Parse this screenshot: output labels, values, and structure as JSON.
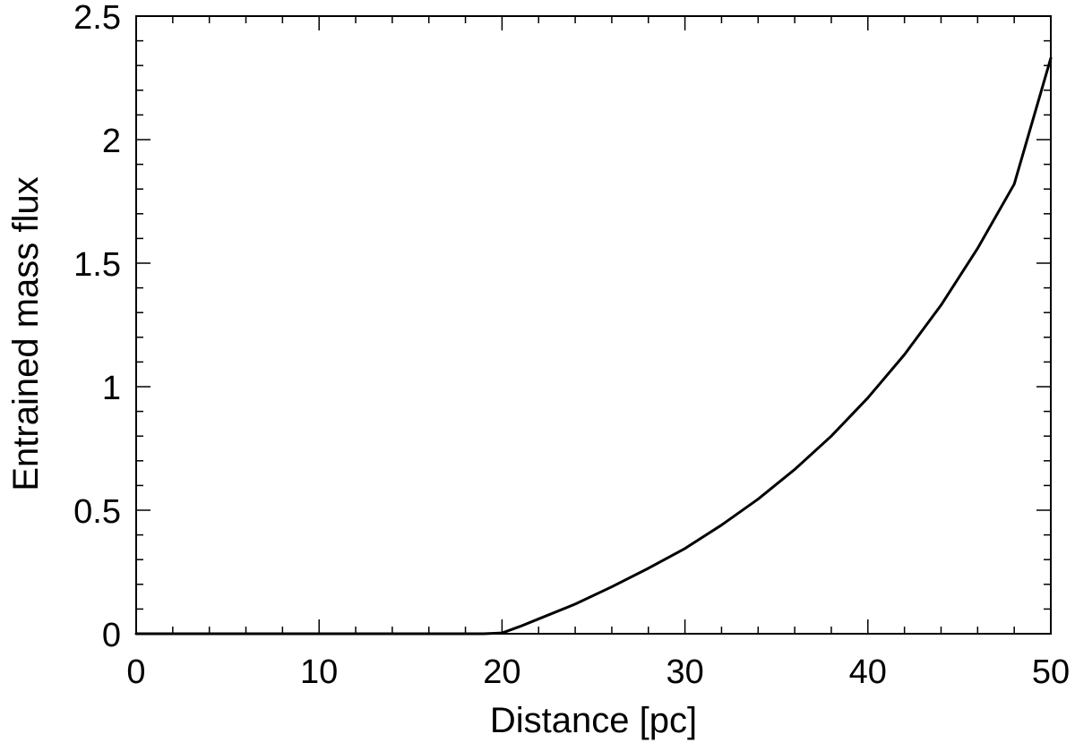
{
  "chart_data": {
    "type": "line",
    "title": "",
    "xlabel": "Distance [pc]",
    "ylabel": "Entrained mass flux",
    "xlim": [
      0,
      50
    ],
    "ylim": [
      0,
      2.5
    ],
    "x_ticks": [
      0,
      10,
      20,
      30,
      40,
      50
    ],
    "x_tick_labels": [
      "0",
      "10",
      "20",
      "30",
      "40",
      "50"
    ],
    "y_ticks": [
      0,
      0.5,
      1,
      1.5,
      2,
      2.5
    ],
    "y_tick_labels": [
      "0",
      "0.5",
      "1",
      "1.5",
      "2",
      "2.5"
    ],
    "x_minor_step": 2,
    "y_minor_step": 0.1,
    "grid": false,
    "legend": "none",
    "line_color": "#000000",
    "series": [
      {
        "x": [
          0,
          5,
          10,
          15,
          19,
          20,
          21,
          22,
          24,
          26,
          28,
          30,
          32,
          34,
          36,
          38,
          40,
          42,
          44,
          46,
          48,
          50
        ],
        "values": [
          0,
          0,
          0,
          0,
          0,
          0.003,
          0.03,
          0.06,
          0.12,
          0.19,
          0.265,
          0.345,
          0.44,
          0.545,
          0.665,
          0.8,
          0.955,
          1.13,
          1.33,
          1.56,
          1.82,
          2.33
        ]
      }
    ]
  }
}
